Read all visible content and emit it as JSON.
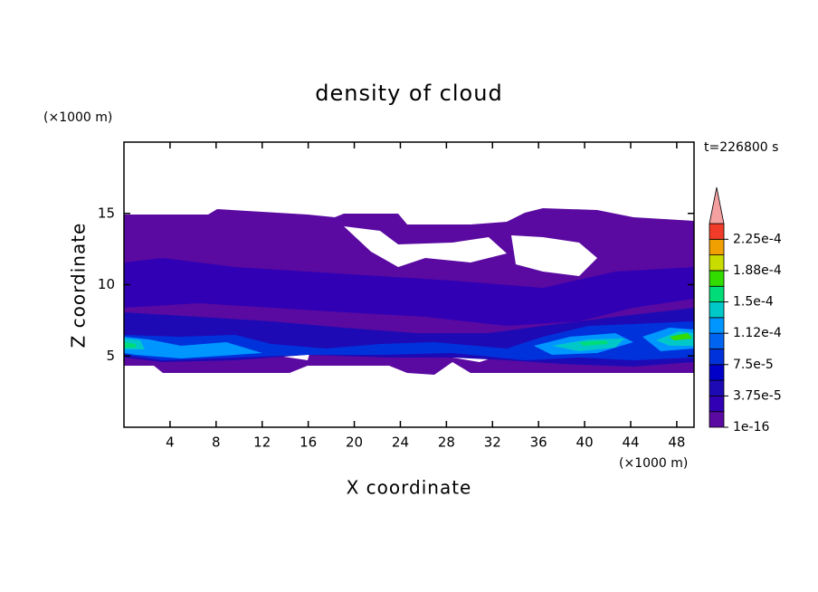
{
  "chart_data": {
    "type": "contour",
    "title": "density of cloud",
    "x_label": "X coordinate",
    "y_label": "Z coordinate",
    "x_unit": "(×1000 m)",
    "y_unit": "(×1000 m)",
    "time_label": "t=226800 s",
    "xlim": [
      0,
      49.5
    ],
    "xticks": [
      4,
      8,
      12,
      16,
      20,
      24,
      28,
      32,
      36,
      40,
      44,
      48
    ],
    "ylim": [
      0,
      20
    ],
    "yticks": [
      5,
      10,
      15
    ],
    "colorbar": {
      "clim": [
        1e-16,
        0.00024375
      ],
      "colors": [
        "#5a0aa0",
        "#3200b4",
        "#1e0ab4",
        "#0000c8",
        "#0032dc",
        "#0064f0",
        "#0096ff",
        "#00c8c8",
        "#00dc78",
        "#32dc00",
        "#c8dc00",
        "#f0a000",
        "#f03c28"
      ],
      "extend_color": "#f4a0a0",
      "ticks": [
        1e-16,
        {
          "value": 3.75e-05,
          "label": "3.75e-5"
        },
        {
          "value": 7.5e-05,
          "label": "7.5e-5"
        },
        {
          "value": 0.0001125,
          "label": "1.12e-4"
        },
        {
          "value": 0.00015,
          "label": "1.5e-4"
        },
        {
          "value": 0.0001875,
          "label": "1.88e-4"
        },
        {
          "value": 0.000225,
          "label": "2.25e-4"
        }
      ]
    }
  }
}
